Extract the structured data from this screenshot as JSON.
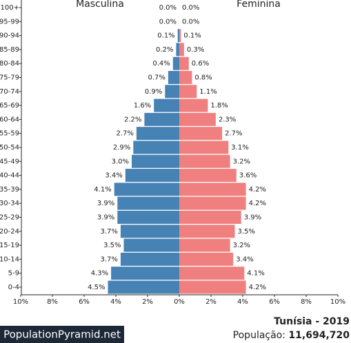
{
  "chart_data": {
    "type": "pyramid",
    "categories": [
      "100+",
      "95-99",
      "90-94",
      "85-89",
      "80-84",
      "75-79",
      "70-74",
      "65-69",
      "60-64",
      "55-59",
      "50-54",
      "45-49",
      "40-44",
      "35-39",
      "30-34",
      "25-29",
      "20-24",
      "15-19",
      "10-14",
      "5-9",
      "0-4"
    ],
    "series": [
      {
        "name": "Masculina",
        "color": "#4682b4",
        "values": [
          0.0,
          0.0,
          0.1,
          0.2,
          0.4,
          0.7,
          0.9,
          1.6,
          2.2,
          2.7,
          2.9,
          3.0,
          3.4,
          4.1,
          3.9,
          3.9,
          3.7,
          3.5,
          3.7,
          4.3,
          4.5
        ],
        "value_labels": [
          "0.0%",
          "0.0%",
          "0.1%",
          "0.2%",
          "0.4%",
          "0.7%",
          "0.9%",
          "1.6%",
          "2.2%",
          "2.7%",
          "2.9%",
          "3.0%",
          "3.4%",
          "4.1%",
          "3.9%",
          "3.9%",
          "3.7%",
          "3.5%",
          "3.7%",
          "4.3%",
          "4.5%"
        ]
      },
      {
        "name": "Feminina",
        "color": "#f08080",
        "values": [
          0.0,
          0.0,
          0.1,
          0.3,
          0.6,
          0.8,
          1.1,
          1.8,
          2.3,
          2.7,
          3.1,
          3.2,
          3.6,
          4.2,
          4.2,
          3.9,
          3.5,
          3.2,
          3.4,
          4.1,
          4.2
        ],
        "value_labels": [
          "0.0%",
          "0.0%",
          "0.1%",
          "0.3%",
          "0.6%",
          "0.8%",
          "1.1%",
          "1.8%",
          "2.3%",
          "2.7%",
          "3.1%",
          "3.2%",
          "3.6%",
          "4.2%",
          "4.2%",
          "3.9%",
          "3.5%",
          "3.2%",
          "3.4%",
          "4.1%",
          "4.2%"
        ]
      }
    ],
    "xlim": [
      0,
      10
    ],
    "xticks": [
      {
        "value": 0,
        "label": "0%"
      },
      {
        "value": 2,
        "label": "2%"
      },
      {
        "value": 4,
        "label": "4%"
      },
      {
        "value": 6,
        "label": "6%"
      },
      {
        "value": 8,
        "label": "8%"
      },
      {
        "value": 10,
        "label": "10%"
      }
    ]
  },
  "footer": {
    "logo": "PopulationPyramid.net",
    "title": "Tunísia - 2019",
    "population_label": "População:",
    "population": "11,694,720"
  }
}
